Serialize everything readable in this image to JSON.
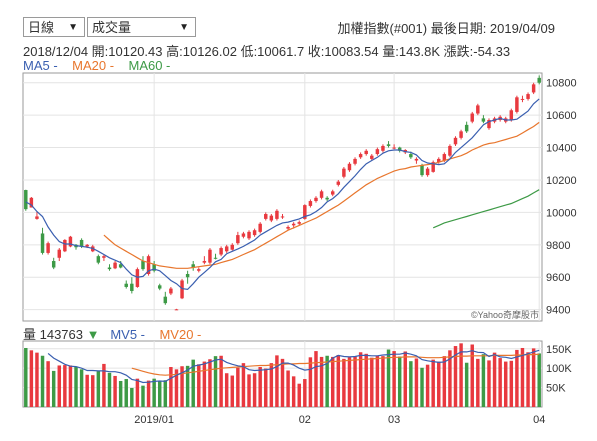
{
  "controls": {
    "period_label": "日線",
    "indicator_label": "成交量",
    "arrow": "▼"
  },
  "header": {
    "title": "加權指數(#001)   最後日期: 2019/04/09",
    "ohlc": "2018/12/04  開:10120.43  高:10126.02  低:10061.7  收:10083.54  量:143.8K  漲跌:-54.33"
  },
  "legend": {
    "ma5": "MA5 -",
    "ma20": "MA20 -",
    "ma60": "MA60 -"
  },
  "volume_legend": {
    "label": "量 143763",
    "arrow": "▼",
    "mv5": "MV5 -",
    "mv20": "MV20 -"
  },
  "watermark": "©Yahoo奇摩股市",
  "colors": {
    "up": "#e8393f",
    "down": "#3d9a46",
    "ma5": "#3a5fb0",
    "ma20": "#e8762d",
    "ma60": "#3d9a46",
    "grid": "#e4e4e4",
    "frame": "#9a9a9a"
  },
  "chart_data": [
    {
      "type": "candlestick",
      "price_ticks": [
        9400,
        9600,
        9800,
        10000,
        10200,
        10400,
        10600,
        10800
      ],
      "ylim": [
        9330,
        10860
      ],
      "x_ticks": [
        {
          "label": "2019/01",
          "index": 23
        },
        {
          "label": "02",
          "index": 50
        },
        {
          "label": "03",
          "index": 66
        },
        {
          "label": "04",
          "index": 92
        }
      ],
      "ohlc": [
        [
          10138,
          10140,
          10010,
          10020
        ],
        [
          10030,
          10095,
          10030,
          10090
        ],
        [
          9960,
          10005,
          9955,
          9975
        ],
        [
          9870,
          9905,
          9740,
          9750
        ],
        [
          9750,
          9820,
          9740,
          9810
        ],
        [
          9700,
          9720,
          9650,
          9660
        ],
        [
          9720,
          9780,
          9700,
          9770
        ],
        [
          9760,
          9835,
          9755,
          9830
        ],
        [
          9790,
          9855,
          9785,
          9850
        ],
        [
          9800,
          9805,
          9770,
          9785
        ],
        [
          9830,
          9840,
          9780,
          9790
        ],
        [
          9790,
          9805,
          9780,
          9800
        ],
        [
          9760,
          9800,
          9755,
          9790
        ],
        [
          9730,
          9740,
          9680,
          9690
        ],
        [
          9720,
          9740,
          9700,
          9730
        ],
        [
          9660,
          9680,
          9640,
          9650
        ],
        [
          9655,
          9700,
          9650,
          9690
        ],
        [
          9680,
          9700,
          9655,
          9660
        ],
        [
          9560,
          9580,
          9530,
          9540
        ],
        [
          9560,
          9600,
          9500,
          9515
        ],
        [
          9540,
          9660,
          9535,
          9650
        ],
        [
          9700,
          9730,
          9640,
          9650
        ],
        [
          9620,
          9740,
          9610,
          9730
        ],
        [
          9680,
          9700,
          9630,
          9640
        ],
        [
          9550,
          9560,
          9520,
          9530
        ],
        [
          9480,
          9510,
          9430,
          9440
        ],
        [
          9500,
          9540,
          9490,
          9530
        ],
        [
          9400,
          9405,
          9400,
          9402
        ],
        [
          9470,
          9590,
          9465,
          9580
        ],
        [
          9620,
          9640,
          9560,
          9600
        ],
        [
          9680,
          9700,
          9640,
          9660
        ],
        [
          9640,
          9660,
          9630,
          9650
        ],
        [
          9690,
          9730,
          9680,
          9700
        ],
        [
          9690,
          9780,
          9680,
          9770
        ],
        [
          9720,
          9745,
          9710,
          9715
        ],
        [
          9740,
          9790,
          9730,
          9780
        ],
        [
          9760,
          9800,
          9750,
          9790
        ],
        [
          9770,
          9810,
          9765,
          9800
        ],
        [
          9810,
          9880,
          9800,
          9860
        ],
        [
          9850,
          9880,
          9840,
          9870
        ],
        [
          9840,
          9890,
          9830,
          9880
        ],
        [
          9860,
          9900,
          9850,
          9890
        ],
        [
          9880,
          9940,
          9870,
          9930
        ],
        [
          9960,
          10000,
          9950,
          9990
        ],
        [
          9950,
          9990,
          9940,
          9980
        ],
        [
          9960,
          10020,
          9950,
          10010
        ],
        [
          9970,
          9990,
          9960,
          9975
        ],
        [
          9900,
          9920,
          9890,
          9910
        ],
        [
          9920,
          9940,
          9900,
          9930
        ],
        [
          9930,
          9950,
          9920,
          9940
        ],
        [
          9960,
          10050,
          9955,
          10045
        ],
        [
          10040,
          10080,
          10030,
          10070
        ],
        [
          10070,
          10100,
          10060,
          10090
        ],
        [
          10090,
          10140,
          10080,
          10130
        ],
        [
          10090,
          10100,
          10070,
          10080
        ],
        [
          10110,
          10140,
          10100,
          10130
        ],
        [
          10170,
          10200,
          10160,
          10190
        ],
        [
          10220,
          10280,
          10210,
          10270
        ],
        [
          10260,
          10310,
          10250,
          10300
        ],
        [
          10300,
          10340,
          10290,
          10330
        ],
        [
          10340,
          10370,
          10330,
          10360
        ],
        [
          10360,
          10390,
          10350,
          10380
        ],
        [
          10330,
          10360,
          10320,
          10350
        ],
        [
          10360,
          10400,
          10350,
          10390
        ],
        [
          10380,
          10420,
          10370,
          10410
        ],
        [
          10420,
          10440,
          10400,
          10410
        ],
        [
          10400,
          10420,
          10390,
          10400
        ],
        [
          10400,
          10405,
          10370,
          10380
        ],
        [
          10370,
          10390,
          10360,
          10385
        ],
        [
          10360,
          10375,
          10330,
          10340
        ],
        [
          10320,
          10340,
          10300,
          10330
        ],
        [
          10290,
          10300,
          10220,
          10230
        ],
        [
          10230,
          10280,
          10220,
          10270
        ],
        [
          10250,
          10320,
          10245,
          10310
        ],
        [
          10310,
          10340,
          10300,
          10330
        ],
        [
          10320,
          10370,
          10310,
          10360
        ],
        [
          10350,
          10420,
          10340,
          10410
        ],
        [
          10420,
          10470,
          10410,
          10460
        ],
        [
          10460,
          10510,
          10450,
          10500
        ],
        [
          10540,
          10560,
          10490,
          10500
        ],
        [
          10560,
          10620,
          10550,
          10610
        ],
        [
          10610,
          10670,
          10600,
          10660
        ],
        [
          10580,
          10600,
          10550,
          10560
        ],
        [
          10520,
          10580,
          10510,
          10570
        ],
        [
          10560,
          10590,
          10550,
          10580
        ],
        [
          10570,
          10600,
          10560,
          10590
        ],
        [
          10560,
          10590,
          10550,
          10580
        ],
        [
          10570,
          10640,
          10560,
          10630
        ],
        [
          10620,
          10720,
          10610,
          10710
        ],
        [
          10700,
          10720,
          10680,
          10700
        ],
        [
          10700,
          10740,
          10690,
          10730
        ],
        [
          10740,
          10800,
          10730,
          10790
        ],
        [
          10830,
          10845,
          10790,
          10800
        ]
      ],
      "ma5": [
        10065,
        10045,
        10005,
        9975,
        9910,
        9860,
        9820,
        9805,
        9805,
        9795,
        9790,
        9785,
        9778,
        9760,
        9740,
        9720,
        9705,
        9690,
        9650,
        9615,
        9600,
        9605,
        9640,
        9650,
        9640,
        9610,
        9580,
        9560,
        9530,
        9525,
        9560,
        9600,
        9630,
        9660,
        9695,
        9710,
        9745,
        9760,
        9775,
        9790,
        9810,
        9830,
        9860,
        9880,
        9900,
        9920,
        9935,
        9940,
        9950,
        9960,
        9975,
        9985,
        10005,
        10030,
        10065,
        10085,
        10115,
        10155,
        10190,
        10225,
        10265,
        10300,
        10320,
        10340,
        10365,
        10380,
        10385,
        10385,
        10375,
        10370,
        10355,
        10320,
        10305,
        10300,
        10295,
        10300,
        10330,
        10370,
        10400,
        10430,
        10460,
        10500,
        10540,
        10560,
        10570,
        10580,
        10570,
        10570,
        10575,
        10600,
        10625,
        10670,
        10700
      ],
      "ma20": [
        null,
        null,
        null,
        null,
        null,
        null,
        null,
        null,
        null,
        null,
        null,
        null,
        null,
        null,
        9860,
        9830,
        9800,
        9780,
        9760,
        9740,
        9720,
        9700,
        9690,
        9680,
        9670,
        9665,
        9660,
        9655,
        9655,
        9655,
        9660,
        9665,
        9670,
        9675,
        9680,
        9690,
        9700,
        9710,
        9725,
        9740,
        9755,
        9770,
        9790,
        9810,
        9830,
        9850,
        9870,
        9890,
        9905,
        9920,
        9935,
        9950,
        9965,
        9985,
        10005,
        10025,
        10045,
        10070,
        10095,
        10120,
        10145,
        10170,
        10190,
        10210,
        10225,
        10240,
        10255,
        10265,
        10270,
        10280,
        10285,
        10290,
        10295,
        10300,
        10310,
        10320,
        10330,
        10340,
        10350,
        10365,
        10385,
        10400,
        10415,
        10425,
        10430,
        10440,
        10450,
        10460,
        10470,
        10490,
        10510,
        10530,
        10555
      ],
      "ma60": [
        null,
        null,
        null,
        null,
        null,
        null,
        null,
        null,
        null,
        null,
        null,
        null,
        null,
        null,
        null,
        null,
        null,
        null,
        null,
        null,
        null,
        null,
        null,
        null,
        null,
        null,
        null,
        null,
        null,
        null,
        null,
        null,
        null,
        null,
        null,
        null,
        null,
        null,
        null,
        null,
        null,
        null,
        null,
        null,
        null,
        null,
        null,
        null,
        null,
        null,
        null,
        null,
        null,
        null,
        null,
        null,
        null,
        null,
        null,
        null,
        null,
        null,
        null,
        null,
        null,
        null,
        null,
        null,
        null,
        null,
        null,
        null,
        null,
        9905,
        9920,
        9935,
        9945,
        9955,
        9965,
        9975,
        9985,
        9995,
        10005,
        10015,
        10025,
        10035,
        10045,
        10055,
        10070,
        10085,
        10100,
        10120,
        10140
      ]
    },
    {
      "type": "volume_bar",
      "ticks": [
        {
          "label": "150K",
          "value": 150000
        },
        {
          "label": "100K",
          "value": 100000
        },
        {
          "label": "50K",
          "value": 50000
        }
      ],
      "ylim": [
        0,
        170000
      ],
      "volumes": [
        152000,
        146000,
        140000,
        132000,
        118000,
        93000,
        107000,
        108000,
        107000,
        103000,
        97000,
        83000,
        82000,
        92000,
        111000,
        88000,
        80000,
        67000,
        72000,
        49000,
        73000,
        55000,
        68000,
        73000,
        68000,
        69000,
        103000,
        97000,
        105000,
        106000,
        122000,
        110000,
        117000,
        123000,
        131000,
        132000,
        87000,
        81000,
        101000,
        113000,
        84000,
        87000,
        103000,
        99000,
        113000,
        133000,
        124000,
        94000,
        79000,
        60000,
        72000,
        128000,
        144000,
        129000,
        132000,
        129000,
        134000,
        124000,
        128000,
        130000,
        141000,
        137000,
        127000,
        132000,
        131000,
        148000,
        144000,
        130000,
        143000,
        118000,
        125000,
        101000,
        109000,
        122000,
        117000,
        131000,
        146000,
        157000,
        164000,
        114000,
        161000,
        124000,
        136000,
        120000,
        140000,
        126000,
        117000,
        119000,
        147000,
        152000,
        141000,
        151000,
        138000
      ],
      "mv5": [
        null,
        null,
        null,
        null,
        138000,
        126000,
        118000,
        110000,
        105000,
        104000,
        100000,
        94000,
        94000,
        93000,
        93000,
        91000,
        91000,
        88000,
        82000,
        71000,
        68000,
        63000,
        64000,
        66000,
        67000,
        66000,
        74000,
        82000,
        88000,
        95000,
        105000,
        108000,
        111000,
        116000,
        121000,
        123000,
        115000,
        110000,
        106000,
        104000,
        96000,
        94000,
        95000,
        96000,
        98000,
        104000,
        113000,
        113000,
        108000,
        100000,
        95000,
        97000,
        104000,
        106000,
        112000,
        126000,
        133000,
        130000,
        129000,
        130000,
        133000,
        133000,
        132000,
        132000,
        134000,
        135000,
        136000,
        136000,
        139000,
        136000,
        132000,
        122000,
        119000,
        117000,
        115000,
        116000,
        124000,
        134000,
        142000,
        142000,
        145000,
        141000,
        140000,
        130000,
        135000,
        129000,
        128000,
        125000,
        129000,
        133000,
        137000,
        142000,
        146000
      ],
      "mv20": [
        null,
        null,
        null,
        null,
        null,
        null,
        null,
        null,
        null,
        null,
        null,
        null,
        null,
        null,
        null,
        null,
        null,
        null,
        null,
        100000,
        96000,
        92000,
        88000,
        85000,
        83000,
        82000,
        83000,
        84000,
        86000,
        88000,
        90000,
        92000,
        94000,
        96000,
        98000,
        100000,
        101000,
        102000,
        103000,
        104000,
        105000,
        106000,
        107000,
        107000,
        108000,
        109000,
        110000,
        111000,
        111000,
        112000,
        112000,
        113000,
        114000,
        115000,
        116000,
        117000,
        118000,
        119000,
        120000,
        121000,
        122000,
        123000,
        124000,
        125000,
        126000,
        127000,
        128000,
        128000,
        129000,
        129000,
        129000,
        128000,
        127000,
        127000,
        127000,
        128000,
        129000,
        130000,
        131000,
        131000,
        132000,
        132000,
        132000,
        132000,
        133000,
        133000,
        133000,
        133000,
        134000,
        134000,
        135000,
        135000,
        136000
      ]
    }
  ]
}
